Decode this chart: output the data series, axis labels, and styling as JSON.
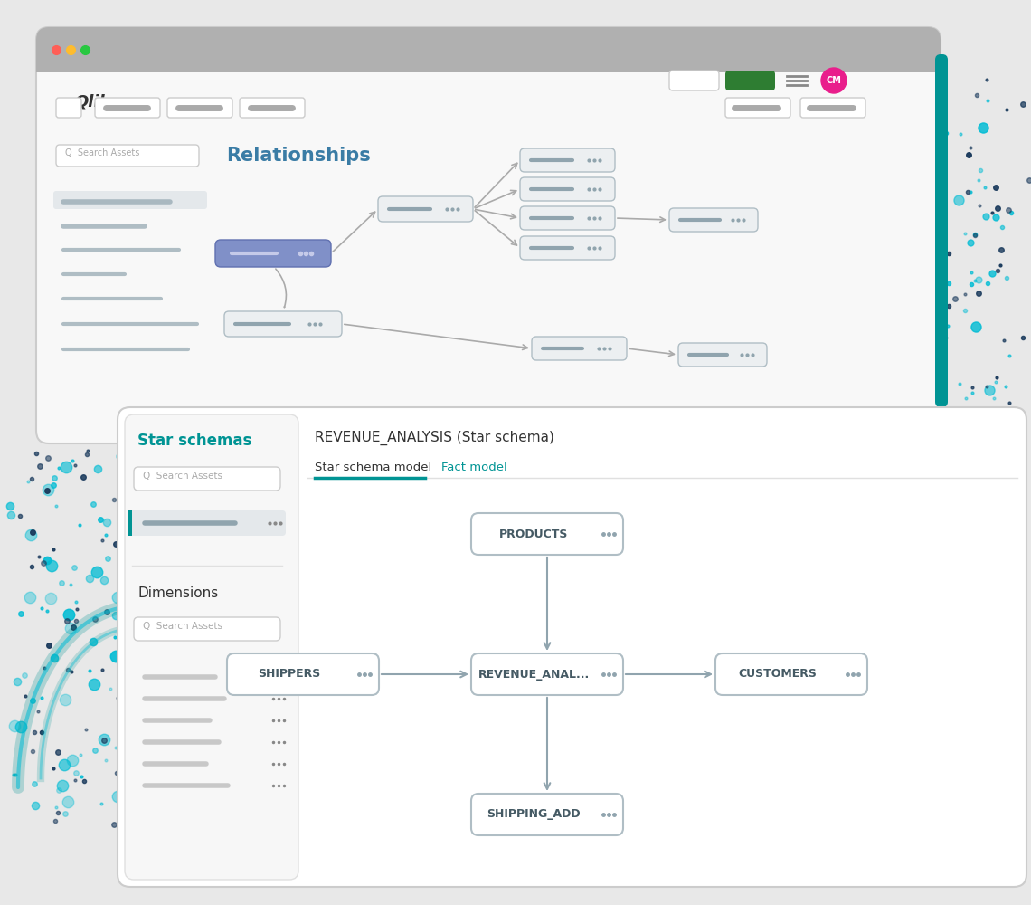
{
  "bg_color": "#e8e8e8",
  "qlik_color": "#333333",
  "relationships_title": "Relationships",
  "relationships_color": "#3a7ca5",
  "star_schema_title": "Star schemas",
  "star_schema_color": "#009494",
  "revenue_title": "REVENUE_ANALYSIS (Star schema)",
  "tab1": "Star schema model",
  "tab2": "Fact model",
  "tab_active_color": "#009494",
  "node_border": "#b0bec5",
  "node_bg": "#ffffff",
  "node_text_color": "#455a64",
  "center_node_label": "REVENUE_ANAL...",
  "top_node_label": "PRODUCTS",
  "left_node_label": "SHIPPERS",
  "right_node_label": "CUSTOMERS",
  "bottom_node_label": "SHIPPING_ADD",
  "arrow_color": "#90a4ae",
  "dots_teal": "#00bcd4",
  "dots_navy": "#1a3a5c",
  "rel_box_bg": "#eceff1",
  "rel_box_border": "#b0bec5",
  "rel_center_bg": "#7986cb",
  "cm_badge_color": "#e91e8c",
  "green_btn_color": "#2e7d32"
}
